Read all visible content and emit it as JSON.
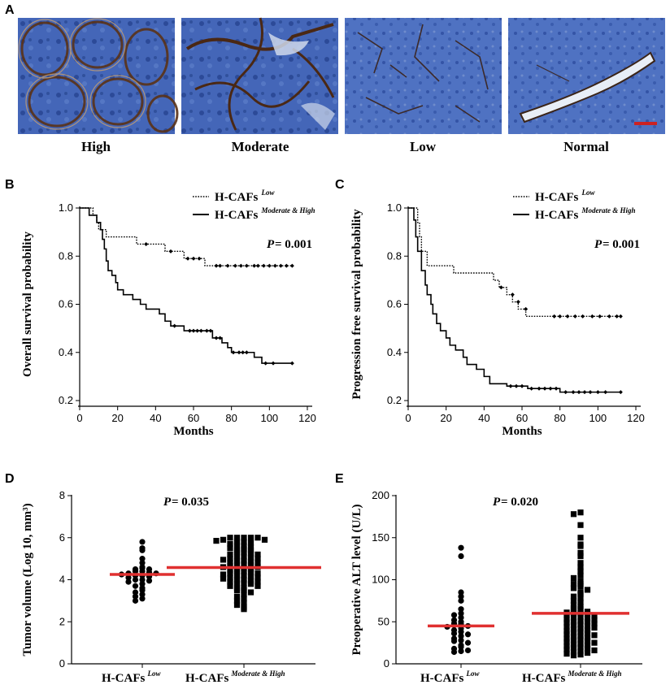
{
  "panelA": {
    "label": "A",
    "captions": [
      "High",
      "Moderate",
      "Low",
      "Normal"
    ]
  },
  "chart_data": [
    {
      "panel": "B",
      "type": "line",
      "title": "",
      "xlabel": "Months",
      "ylabel": "Overall survival probability",
      "xticks": [
        "0",
        "20",
        "40",
        "60",
        "80",
        "100",
        "120"
      ],
      "yticks": [
        "0.2",
        "0.4",
        "0.6",
        "0.8",
        "1.0"
      ],
      "xlim": [
        0,
        120
      ],
      "ylim": [
        0.2,
        1.0
      ],
      "p_prefix": "P",
      "p_value": " = 0.001",
      "legend": [
        {
          "name": "H-CAFs",
          "sup": "Low",
          "style": "dotted"
        },
        {
          "name": "H-CAFs",
          "sup": "Moderate & High",
          "style": "solid"
        }
      ],
      "series": [
        {
          "name": "H-CAFs Low",
          "style": "dotted",
          "points": [
            [
              0,
              1.0
            ],
            [
              5,
              1.0
            ],
            [
              7,
              0.97
            ],
            [
              9,
              0.94
            ],
            [
              10,
              0.91
            ],
            [
              14,
              0.88
            ],
            [
              30,
              0.88
            ],
            [
              30,
              0.85
            ],
            [
              40,
              0.85
            ],
            [
              45,
              0.82
            ],
            [
              52,
              0.82
            ],
            [
              55,
              0.79
            ],
            [
              65,
              0.79
            ],
            [
              66,
              0.76
            ],
            [
              112,
              0.76
            ]
          ],
          "censors": [
            [
              35,
              0.85
            ],
            [
              48,
              0.82
            ],
            [
              57,
              0.79
            ],
            [
              60,
              0.79
            ],
            [
              63,
              0.79
            ],
            [
              72,
              0.76
            ],
            [
              74,
              0.76
            ],
            [
              78,
              0.76
            ],
            [
              82,
              0.76
            ],
            [
              85,
              0.76
            ],
            [
              88,
              0.76
            ],
            [
              92,
              0.76
            ],
            [
              94,
              0.76
            ],
            [
              97,
              0.76
            ],
            [
              100,
              0.76
            ],
            [
              103,
              0.76
            ],
            [
              106,
              0.76
            ],
            [
              109,
              0.76
            ],
            [
              112,
              0.76
            ]
          ]
        },
        {
          "name": "H-CAFs Moderate & High",
          "style": "solid",
          "points": [
            [
              0,
              1.0
            ],
            [
              5,
              0.97
            ],
            [
              9,
              0.94
            ],
            [
              11,
              0.91
            ],
            [
              12,
              0.87
            ],
            [
              13,
              0.83
            ],
            [
              14,
              0.78
            ],
            [
              15,
              0.74
            ],
            [
              17,
              0.72
            ],
            [
              19,
              0.69
            ],
            [
              20,
              0.66
            ],
            [
              23,
              0.64
            ],
            [
              28,
              0.62
            ],
            [
              32,
              0.6
            ],
            [
              35,
              0.58
            ],
            [
              39,
              0.58
            ],
            [
              42,
              0.56
            ],
            [
              45,
              0.53
            ],
            [
              48,
              0.51
            ],
            [
              52,
              0.51
            ],
            [
              55,
              0.49
            ],
            [
              66,
              0.49
            ],
            [
              70,
              0.46
            ],
            [
              75,
              0.44
            ],
            [
              78,
              0.42
            ],
            [
              80,
              0.4
            ],
            [
              90,
              0.4
            ],
            [
              92,
              0.38
            ],
            [
              96,
              0.355
            ],
            [
              112,
              0.355
            ]
          ],
          "censors": [
            [
              50,
              0.51
            ],
            [
              58,
              0.49
            ],
            [
              60,
              0.49
            ],
            [
              62,
              0.49
            ],
            [
              64,
              0.49
            ],
            [
              67,
              0.49
            ],
            [
              69,
              0.49
            ],
            [
              72,
              0.46
            ],
            [
              74,
              0.46
            ],
            [
              81,
              0.4
            ],
            [
              84,
              0.4
            ],
            [
              86,
              0.4
            ],
            [
              88,
              0.4
            ],
            [
              98,
              0.355
            ],
            [
              102,
              0.355
            ],
            [
              112,
              0.355
            ]
          ]
        }
      ]
    },
    {
      "panel": "C",
      "type": "line",
      "title": "",
      "xlabel": "Months",
      "ylabel": "Progression free survival probability",
      "xticks": [
        "0",
        "20",
        "40",
        "60",
        "80",
        "100",
        "120"
      ],
      "yticks": [
        "0.2",
        "0.4",
        "0.6",
        "0.8",
        "1.0"
      ],
      "xlim": [
        0,
        120
      ],
      "ylim": [
        0.2,
        1.0
      ],
      "p_prefix": "P",
      "p_value": " = 0.001",
      "legend": [
        {
          "name": "H-CAFs",
          "sup": "Low",
          "style": "dotted"
        },
        {
          "name": "H-CAFs",
          "sup": "Moderate & High",
          "style": "solid"
        }
      ],
      "series": [
        {
          "name": "H-CAFs Low",
          "style": "dotted",
          "points": [
            [
              0,
              1.0
            ],
            [
              3,
              1.0
            ],
            [
              5,
              0.94
            ],
            [
              6,
              0.88
            ],
            [
              7,
              0.82
            ],
            [
              10,
              0.76
            ],
            [
              22,
              0.76
            ],
            [
              24,
              0.73
            ],
            [
              40,
              0.73
            ],
            [
              45,
              0.7
            ],
            [
              48,
              0.67
            ],
            [
              52,
              0.64
            ],
            [
              55,
              0.61
            ],
            [
              58,
              0.58
            ],
            [
              62,
              0.55
            ],
            [
              112,
              0.55
            ]
          ],
          "censors": [
            [
              49,
              0.67
            ],
            [
              55,
              0.64
            ],
            [
              58,
              0.61
            ],
            [
              62,
              0.58
            ],
            [
              77,
              0.55
            ],
            [
              80,
              0.55
            ],
            [
              84,
              0.55
            ],
            [
              88,
              0.55
            ],
            [
              92,
              0.55
            ],
            [
              97,
              0.55
            ],
            [
              101,
              0.55
            ],
            [
              106,
              0.55
            ],
            [
              110,
              0.55
            ],
            [
              112,
              0.55
            ]
          ]
        },
        {
          "name": "H-CAFs Moderate & High",
          "style": "solid",
          "points": [
            [
              0,
              1.0
            ],
            [
              3,
              0.95
            ],
            [
              4,
              0.88
            ],
            [
              5,
              0.82
            ],
            [
              7,
              0.74
            ],
            [
              9,
              0.68
            ],
            [
              10,
              0.64
            ],
            [
              12,
              0.6
            ],
            [
              13,
              0.56
            ],
            [
              15,
              0.52
            ],
            [
              17,
              0.49
            ],
            [
              20,
              0.46
            ],
            [
              22,
              0.43
            ],
            [
              25,
              0.41
            ],
            [
              29,
              0.38
            ],
            [
              31,
              0.35
            ],
            [
              36,
              0.33
            ],
            [
              40,
              0.3
            ],
            [
              43,
              0.27
            ],
            [
              50,
              0.27
            ],
            [
              52,
              0.26
            ],
            [
              62,
              0.26
            ],
            [
              63,
              0.25
            ],
            [
              80,
              0.25
            ],
            [
              80,
              0.235
            ],
            [
              112,
              0.235
            ]
          ],
          "censors": [
            [
              54,
              0.26
            ],
            [
              57,
              0.26
            ],
            [
              60,
              0.26
            ],
            [
              65,
              0.25
            ],
            [
              69,
              0.25
            ],
            [
              72,
              0.25
            ],
            [
              75,
              0.25
            ],
            [
              78,
              0.25
            ],
            [
              83,
              0.235
            ],
            [
              87,
              0.235
            ],
            [
              90,
              0.235
            ],
            [
              93,
              0.235
            ],
            [
              96,
              0.235
            ],
            [
              100,
              0.235
            ],
            [
              104,
              0.235
            ],
            [
              112,
              0.235
            ]
          ]
        }
      ]
    },
    {
      "panel": "D",
      "type": "scatter",
      "title": "",
      "xlabel": "",
      "ylabel": "Tumor volume (Log 10, mm³)",
      "yticks": [
        "0",
        "2",
        "4",
        "6",
        "8"
      ],
      "ylim": [
        0,
        8
      ],
      "p_prefix": "P",
      "p_value": " = 0.035",
      "groups": [
        {
          "name": "H-CAFs",
          "sup": "Low",
          "marker": "circle",
          "mean": 4.25,
          "values": [
            5.8,
            5.5,
            5.4,
            5.0,
            4.8,
            4.6,
            4.55,
            4.5,
            4.5,
            4.4,
            4.4,
            4.35,
            4.3,
            4.3,
            4.25,
            4.2,
            4.2,
            4.15,
            4.1,
            4.0,
            4.0,
            3.95,
            3.9,
            3.8,
            3.7,
            3.6,
            3.5,
            3.4,
            3.3,
            3.2,
            3.1,
            3.0
          ]
        },
        {
          "name": "H-CAFs",
          "sup": "Moderate & High",
          "marker": "square",
          "mean": 4.58,
          "values": [
            6.0,
            6.0,
            6.0,
            6.0,
            6.0,
            5.9,
            5.9,
            5.85,
            5.8,
            5.8,
            5.75,
            5.7,
            5.6,
            5.6,
            5.55,
            5.5,
            5.45,
            5.4,
            5.4,
            5.3,
            5.3,
            5.25,
            5.2,
            5.2,
            5.1,
            5.1,
            5.05,
            5.0,
            5.0,
            4.95,
            4.9,
            4.9,
            4.85,
            4.8,
            4.8,
            4.75,
            4.7,
            4.7,
            4.65,
            4.6,
            4.6,
            4.55,
            4.5,
            4.5,
            4.45,
            4.4,
            4.4,
            4.35,
            4.3,
            4.3,
            4.25,
            4.2,
            4.2,
            4.15,
            4.1,
            4.1,
            4.05,
            4.0,
            4.0,
            3.95,
            3.9,
            3.9,
            3.85,
            3.8,
            3.8,
            3.7,
            3.7,
            3.6,
            3.6,
            3.5,
            3.5,
            3.4,
            3.3,
            3.2,
            3.1,
            3.0,
            2.9,
            2.8,
            2.7,
            2.6
          ]
        }
      ]
    },
    {
      "panel": "E",
      "type": "scatter",
      "title": "",
      "xlabel": "",
      "ylabel": "Preoperative ALT level (U/L)",
      "yticks": [
        "0",
        "50",
        "100",
        "150",
        "200"
      ],
      "ylim": [
        0,
        200
      ],
      "p_prefix": "P",
      "p_value": " = 0.020",
      "groups": [
        {
          "name": "H-CAFs",
          "sup": "Low",
          "marker": "circle",
          "mean": 45,
          "values": [
            138,
            128,
            85,
            80,
            75,
            65,
            60,
            58,
            55,
            52,
            50,
            48,
            47,
            46,
            45,
            44,
            42,
            40,
            38,
            36,
            35,
            33,
            30,
            28,
            27,
            25,
            22,
            20,
            18,
            16,
            15,
            14
          ]
        },
        {
          "name": "H-CAFs",
          "sup": "Moderate & High",
          "marker": "square",
          "mean": 60,
          "values": [
            180,
            178,
            165,
            150,
            142,
            140,
            132,
            128,
            120,
            115,
            110,
            105,
            102,
            98,
            95,
            95,
            92,
            90,
            88,
            85,
            83,
            80,
            78,
            75,
            73,
            70,
            68,
            66,
            65,
            63,
            62,
            61,
            60,
            60,
            59,
            58,
            57,
            56,
            55,
            54,
            53,
            52,
            51,
            50,
            50,
            49,
            48,
            47,
            46,
            45,
            44,
            43,
            42,
            41,
            40,
            39,
            38,
            37,
            36,
            35,
            34,
            33,
            32,
            31,
            30,
            29,
            28,
            27,
            26,
            25,
            24,
            23,
            22,
            21,
            20,
            19,
            18,
            17,
            16,
            15,
            14,
            13,
            12,
            11,
            10
          ]
        }
      ]
    }
  ]
}
